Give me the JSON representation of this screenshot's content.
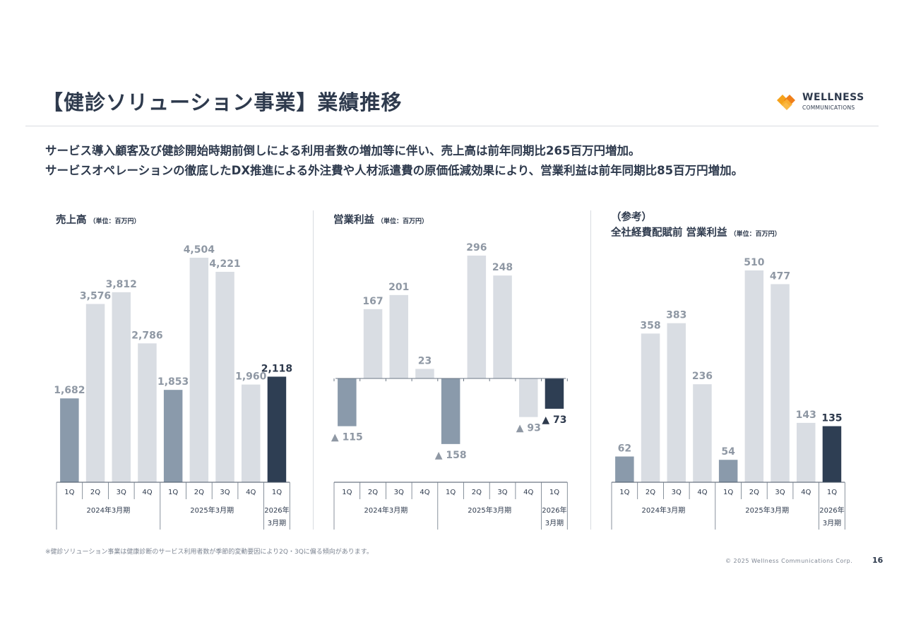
{
  "header": {
    "title": "【健診ソリューション事業】業績推移",
    "logo_name": "WELLNESS",
    "logo_sub": "COMMUNICATIONS"
  },
  "lead": {
    "line1": "サービス導入顧客及び健診開始時期前倒しによる利用者数の増加等に伴い、売上高は前年同期比265百万円増加。",
    "line2": "サービスオペレーションの徹底したDX推進による外注費や人材派遣費の原価低減効果により、営業利益は前年同期比85百万円増加。"
  },
  "colors": {
    "past_q1": "#8a9aab",
    "past_other": "#d9dde3",
    "current": "#2e3e53",
    "label_past": "#8f98a4",
    "label_current": "#2e3a4d"
  },
  "panels": {
    "sales": {
      "title": "売上高",
      "unit": "（単位：百万円）"
    },
    "op": {
      "title": "営業利益",
      "unit": "（単位：百万円）"
    },
    "pre": {
      "ref": "（参考）",
      "title": "全社経費配賦前 営業利益",
      "unit": "（単位：百万円）"
    }
  },
  "axis": {
    "quarters": [
      "1Q",
      "2Q",
      "3Q",
      "4Q",
      "1Q",
      "2Q",
      "3Q",
      "4Q",
      "1Q"
    ],
    "periods": [
      "2024年3月期",
      "2025年3月期",
      "2026年|3月期"
    ]
  },
  "chart_data": [
    {
      "type": "bar",
      "title": "売上高",
      "categories": [
        "2024年3月期 1Q",
        "2024年3月期 2Q",
        "2024年3月期 3Q",
        "2024年3月期 4Q",
        "2025年3月期 1Q",
        "2025年3月期 2Q",
        "2025年3月期 3Q",
        "2025年3月期 4Q",
        "2026年3月期 1Q"
      ],
      "values": [
        1682,
        3576,
        3812,
        2786,
        1853,
        4504,
        4221,
        1960,
        2118
      ],
      "labels": [
        "1,682",
        "3,576",
        "3,812",
        "2,786",
        "1,853",
        "4,504",
        "4,221",
        "1,960",
        "2,118"
      ],
      "ylim": [
        0,
        4700
      ]
    },
    {
      "type": "bar",
      "title": "営業利益",
      "categories": [
        "2024年3月期 1Q",
        "2024年3月期 2Q",
        "2024年3月期 3Q",
        "2024年3月期 4Q",
        "2025年3月期 1Q",
        "2025年3月期 2Q",
        "2025年3月期 3Q",
        "2025年3月期 4Q",
        "2026年3月期 1Q"
      ],
      "values": [
        -115,
        167,
        201,
        23,
        -158,
        296,
        248,
        -93,
        -73
      ],
      "labels": [
        "▲ 115",
        "167",
        "201",
        "23",
        "▲ 158",
        "296",
        "248",
        "▲ 93",
        "▲ 73"
      ],
      "ylim": [
        -200,
        300
      ]
    },
    {
      "type": "bar",
      "title": "全社経費配賦前 営業利益",
      "categories": [
        "2024年3月期 1Q",
        "2024年3月期 2Q",
        "2024年3月期 3Q",
        "2024年3月期 4Q",
        "2025年3月期 1Q",
        "2025年3月期 2Q",
        "2025年3月期 3Q",
        "2025年3月期 4Q",
        "2026年3月期 1Q"
      ],
      "values": [
        62,
        358,
        383,
        236,
        54,
        510,
        477,
        143,
        135
      ],
      "labels": [
        "62",
        "358",
        "383",
        "236",
        "54",
        "510",
        "477",
        "143",
        "135"
      ],
      "ylim": [
        0,
        530
      ]
    }
  ],
  "footer": {
    "note": "※健診ソリューション事業は健康診断のサービス利用者数が季節的変動要因により2Q・3Qに偏る傾向があります。",
    "copyright": "© 2025 Wellness Communications Corp.",
    "page": "16"
  }
}
